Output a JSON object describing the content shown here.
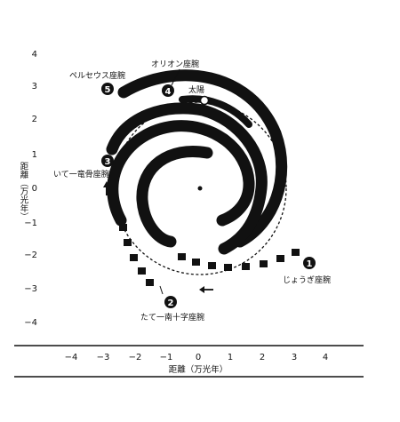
{
  "axes": {
    "x_title": "距離（万光年）",
    "y_title": "距離（万光年）",
    "x_ticks": [
      "−4",
      "−3",
      "−2",
      "−1",
      "0",
      "1",
      "2",
      "3",
      "4"
    ],
    "y_ticks": [
      "4",
      "3",
      "2",
      "1",
      "0",
      "−1",
      "−2",
      "−3",
      "−4"
    ]
  },
  "arms": [
    {
      "number": "1",
      "label": "じょうぎ座腕"
    },
    {
      "number": "2",
      "label": "たて一南十字座腕"
    },
    {
      "number": "3",
      "label": "いて一竜骨座腕"
    },
    {
      "number": "4",
      "label": "オリオン座腕"
    },
    {
      "number": "5",
      "label": "ペルセウス座腕"
    }
  ],
  "sun_label": "太陽",
  "colors": {
    "ink": "#111111",
    "background": "#ffffff"
  }
}
